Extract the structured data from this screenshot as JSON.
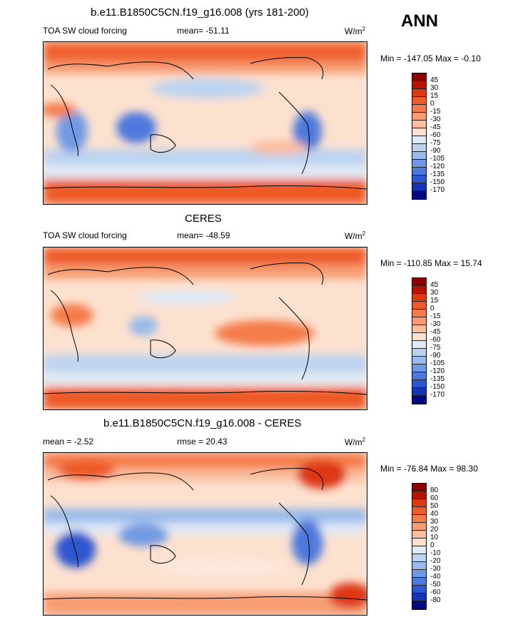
{
  "season": "ANN",
  "units_base": "W/m",
  "units_exp": "2",
  "panels": [
    {
      "title": "b.e11.B1850C5CN.f19_g16.008 (yrs 181-200)",
      "left_label": "TOA SW cloud forcing",
      "mean_label": "mean= -51.11",
      "minmax": "Min = -147.05 Max =  -0.10",
      "levels": [
        "45",
        "30",
        "15",
        "0",
        "-15",
        "-30",
        "-45",
        "-60",
        "-75",
        "-90",
        "-105",
        "-120",
        "-135",
        "-150",
        "-170"
      ],
      "colors": [
        "#8b0000",
        "#b51500",
        "#dc3812",
        "#ee5a28",
        "#f47c4a",
        "#f79c72",
        "#fabd9d",
        "#fde1cf",
        "#dfeaf7",
        "#bcd3f0",
        "#99baea",
        "#7299e3",
        "#4e79dc",
        "#2e56d0",
        "#1534b8",
        "#000a80"
      ]
    },
    {
      "title": "CERES",
      "left_label": "TOA SW cloud forcing",
      "mean_label": "mean= -48.59",
      "minmax": "Min = -110.85 Max =  15.74",
      "levels": [
        "45",
        "30",
        "15",
        "0",
        "-15",
        "-30",
        "-45",
        "-60",
        "-75",
        "-90",
        "-105",
        "-120",
        "-135",
        "-150",
        "-170"
      ],
      "colors": [
        "#8b0000",
        "#b51500",
        "#dc3812",
        "#ee5a28",
        "#f47c4a",
        "#f79c72",
        "#fabd9d",
        "#fde1cf",
        "#dfeaf7",
        "#bcd3f0",
        "#99baea",
        "#7299e3",
        "#4e79dc",
        "#2e56d0",
        "#1534b8",
        "#000a80"
      ]
    },
    {
      "title": "b.e11.B1850C5CN.f19_g16.008 - CERES",
      "left_label": "mean =  -2.52",
      "mean_label": "rmse =  20.43",
      "minmax": "Min = -76.84 Max =  98.30",
      "levels": [
        "80",
        "60",
        "50",
        "40",
        "30",
        "20",
        "10",
        "0",
        "-10",
        "-20",
        "-30",
        "-40",
        "-50",
        "-60",
        "-80"
      ],
      "colors": [
        "#8b0000",
        "#b51500",
        "#dc3812",
        "#ee5a28",
        "#f47c4a",
        "#f79c72",
        "#fabd9d",
        "#fde1cf",
        "#dfeaf7",
        "#bcd3f0",
        "#99baea",
        "#7299e3",
        "#4e79dc",
        "#2e56d0",
        "#1534b8",
        "#000a80"
      ]
    }
  ]
}
